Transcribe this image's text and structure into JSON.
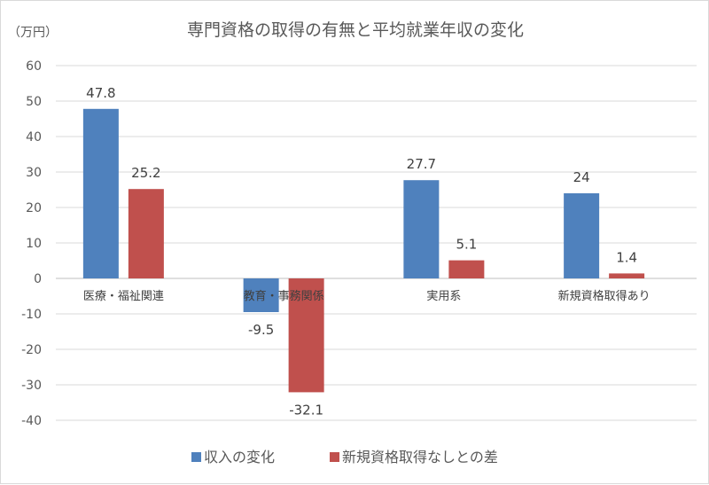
{
  "chart_data": {
    "type": "bar",
    "title": "専門資格の取得の有無と平均就業年収の変化",
    "unit_label": "（万円）",
    "categories": [
      "医療・福祉関連",
      "教育・事務関係",
      "実用系",
      "新規資格取得あり"
    ],
    "series": [
      {
        "name": "収入の変化",
        "values": [
          47.8,
          -9.5,
          27.7,
          24
        ],
        "labels": [
          "47.8",
          "-9.5",
          "27.7",
          "24"
        ],
        "color": "#4f81bd"
      },
      {
        "name": "新規資格取得なしとの差",
        "values": [
          25.2,
          -32.1,
          5.1,
          1.4
        ],
        "labels": [
          "25.2",
          "-32.1",
          "5.1",
          "1.4"
        ],
        "color": "#c0504d"
      }
    ],
    "ylim": [
      -40,
      60
    ],
    "yticks": [
      60,
      50,
      40,
      30,
      20,
      10,
      0,
      -10,
      -20,
      -30,
      -40
    ],
    "grid": true,
    "legend_position": "bottom"
  }
}
